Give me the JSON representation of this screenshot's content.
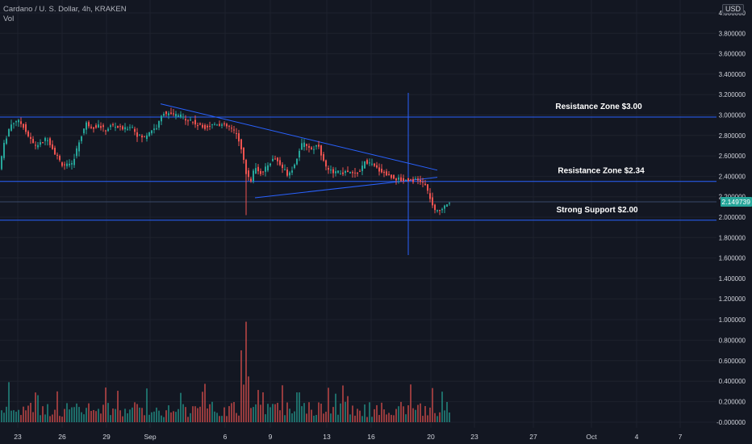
{
  "header": {
    "symbol_line": "Cardano / U. S. Dollar, 4h, KRAKEN",
    "vol_label": "Vol"
  },
  "currency_button": "USD",
  "last_price_label": "2.149739",
  "colors": {
    "background": "#131722",
    "grid": "#1e222d",
    "up": "#26a69a",
    "down": "#ef5350",
    "lines": "#2962ff",
    "text": "#b2b5be"
  },
  "chart_data": {
    "type": "candlestick",
    "price_axis": {
      "ticks": [
        "4.000000",
        "3.800000",
        "3.600000",
        "3.400000",
        "3.200000",
        "3.000000",
        "2.800000",
        "2.600000",
        "2.400000",
        "2.200000",
        "2.000000",
        "1.800000",
        "1.600000",
        "1.400000",
        "1.200000"
      ],
      "ylim": [
        1.1,
        4.1
      ]
    },
    "volume_axis": {
      "ticks": [
        "1.000000",
        "0.800000",
        "0.600000",
        "0.400000",
        "0.200000",
        "-0.000000"
      ],
      "ylim": [
        0,
        1.0
      ]
    },
    "x_ticks": [
      "23",
      "26",
      "29",
      "Sep",
      "6",
      "9",
      "13",
      "16",
      "20",
      "23",
      "27",
      "Oct",
      "4",
      "7"
    ],
    "annotations": [
      {
        "text": "Resistance Zone $3.00",
        "price": 2.98
      },
      {
        "text": "Resistance Zone $2.34",
        "price": 2.35
      },
      {
        "text": "Strong Support $2.00",
        "price": 1.97
      }
    ],
    "horizontal_lines": [
      2.98,
      2.35,
      2.15,
      1.97
    ],
    "vertical_line_x_label": "20",
    "trendlines": [
      {
        "name": "descending",
        "from": [
          "Sep",
          3.11
        ],
        "to": [
          "21",
          2.45
        ]
      },
      {
        "name": "ascending",
        "from": [
          "8",
          2.18
        ],
        "to": [
          "21",
          2.39
        ]
      }
    ],
    "last_price": 2.149739
  }
}
